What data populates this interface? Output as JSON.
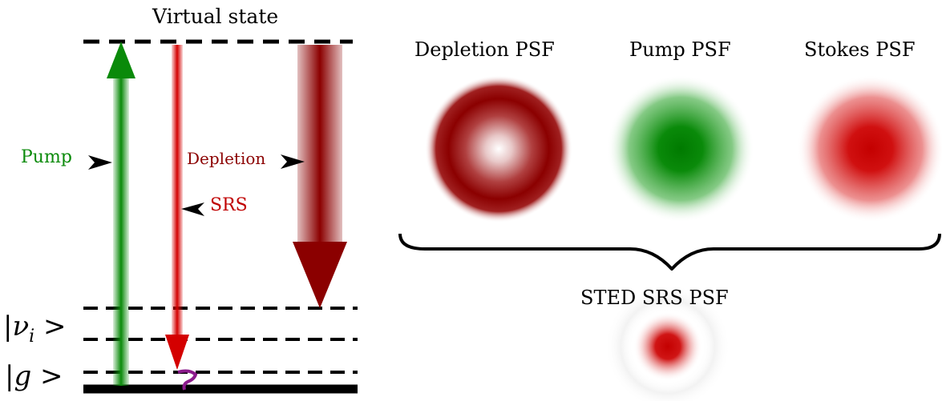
{
  "virtual_state_label": "Virtual state",
  "transitions": {
    "pump": {
      "label": "Pump",
      "color": "#0a8a0a"
    },
    "depletion": {
      "label": "Depletion",
      "color": "#8b0000"
    },
    "srs": {
      "label": "SRS",
      "color": "#c00000"
    }
  },
  "levels": {
    "vibrational": "|ν",
    "vibrational_sub": "i",
    "vibrational_tail": " >",
    "ground": "|g >"
  },
  "psf": {
    "depletion": {
      "title": "Depletion PSF",
      "color": "#8b0000"
    },
    "pump": {
      "title": "Pump PSF",
      "color": "#008000"
    },
    "stokes": {
      "title": "Stokes PSF",
      "color": "#cc0000"
    },
    "combined": {
      "title": "STED SRS PSF",
      "color": "#cc0000"
    }
  },
  "relaxation_color": "#8b1a8b"
}
